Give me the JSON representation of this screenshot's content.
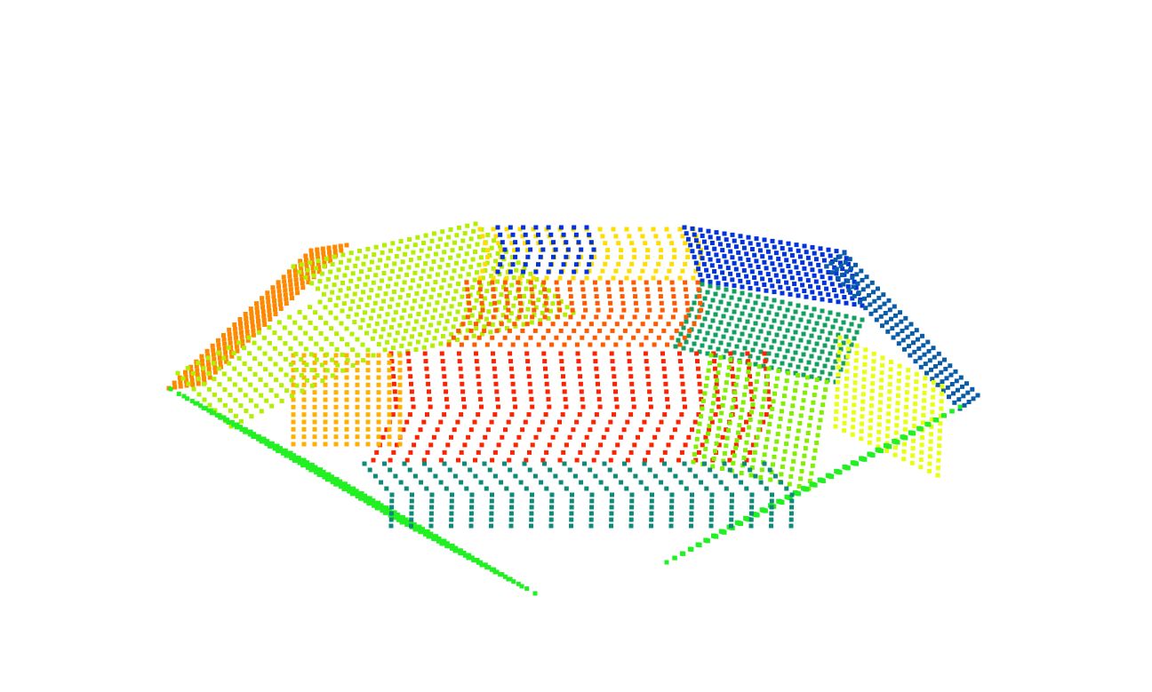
{
  "viewer": {
    "background": "#ffffff",
    "object": "point-cloud-polyhedron"
  },
  "palette": {
    "orange": "#ff8800",
    "yellow_green": "#b0f000",
    "yellow": "#ffdd00",
    "amber": "#ffb000",
    "red": "#ff2200",
    "red_orange": "#ff5a00",
    "blue": "#0033dd",
    "steel_blue": "#0b5ca8",
    "sea_green": "#12a060",
    "lime": "#80f000",
    "bright_yellow": "#e8ff10",
    "green": "#22f022",
    "teal": "#0d8a78"
  },
  "facets": [
    {
      "name": "left-top-facet",
      "color_key": "orange"
    },
    {
      "name": "upper-left-facet",
      "color_key": "yellow_green"
    },
    {
      "name": "upper-center-facet",
      "color_key": "yellow"
    },
    {
      "name": "upper-center-blue-facet",
      "color_key": "blue"
    },
    {
      "name": "upper-right-facet",
      "color_key": "blue"
    },
    {
      "name": "right-edge-facet",
      "color_key": "steel_blue"
    },
    {
      "name": "right-mid-facet",
      "color_key": "sea_green"
    },
    {
      "name": "right-lower-facet",
      "color_key": "bright_yellow"
    },
    {
      "name": "center-band-facet",
      "color_key": "red_orange"
    },
    {
      "name": "front-center-facet",
      "color_key": "red"
    },
    {
      "name": "left-mid-facet",
      "color_key": "amber"
    },
    {
      "name": "left-inner-facet",
      "color_key": "yellow_green"
    },
    {
      "name": "front-right-facet",
      "color_key": "lime"
    },
    {
      "name": "bottom-left-facet",
      "color_key": "green"
    },
    {
      "name": "bottom-right-facet",
      "color_key": "green"
    },
    {
      "name": "bottom-center-facet",
      "color_key": "teal"
    }
  ]
}
